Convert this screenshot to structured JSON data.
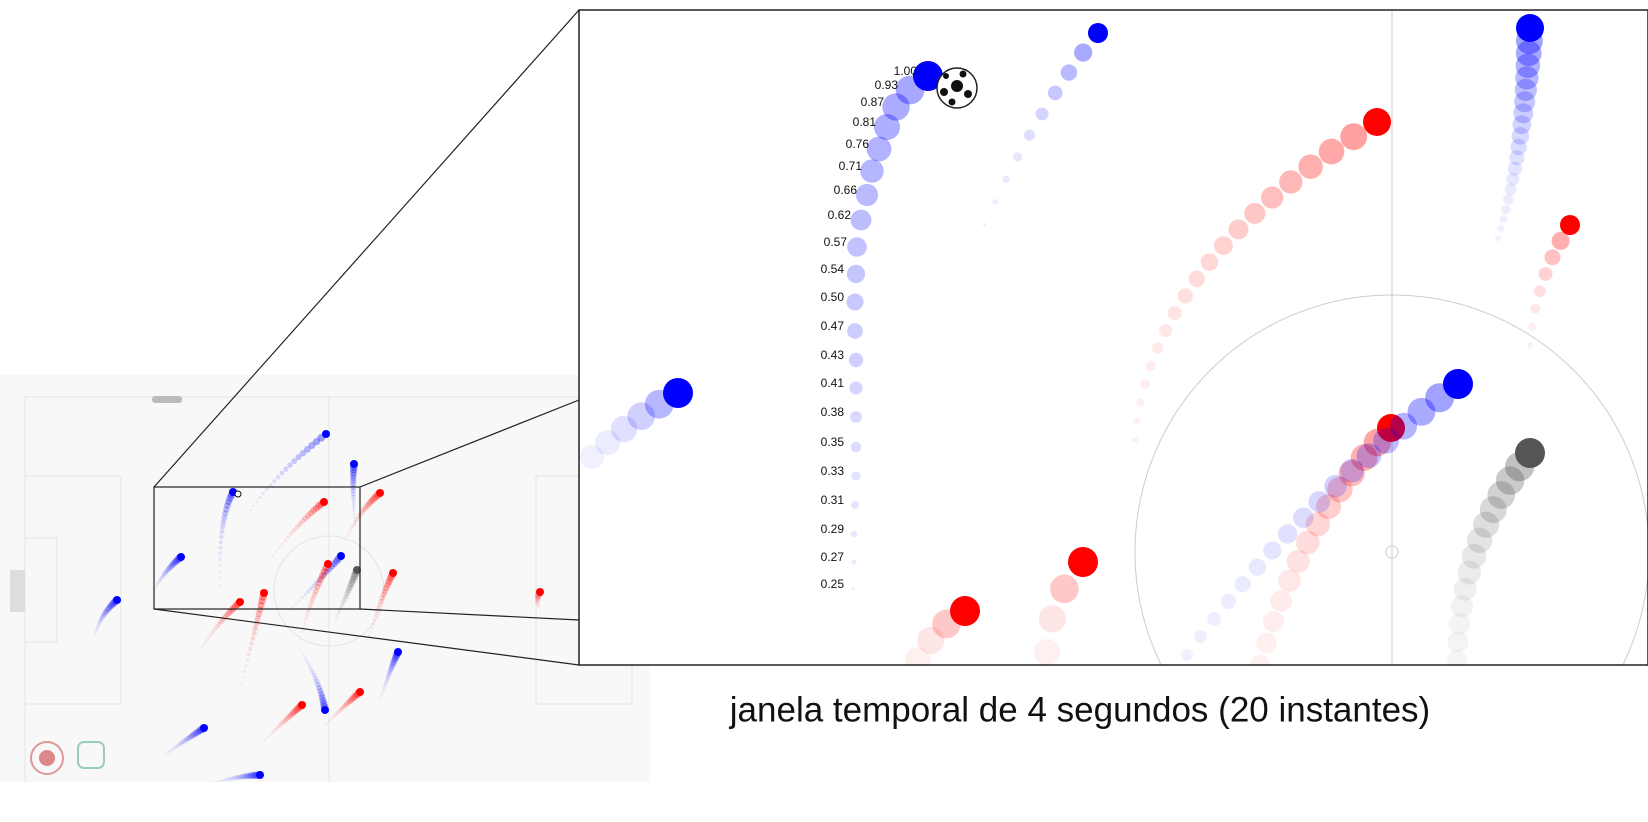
{
  "zoom": {
    "labels": [
      "1.00",
      "0.93",
      "0.87",
      "0.81",
      "0.76",
      "0.71",
      "0.66",
      "0.62",
      "0.57",
      "0.54",
      "0.50",
      "0.47",
      "0.43",
      "0.41",
      "0.38",
      "0.35",
      "0.33",
      "0.31",
      "0.29",
      "0.27",
      "0.25"
    ]
  },
  "caption": "janela temporal de 4 segundos (20 instantes)"
}
